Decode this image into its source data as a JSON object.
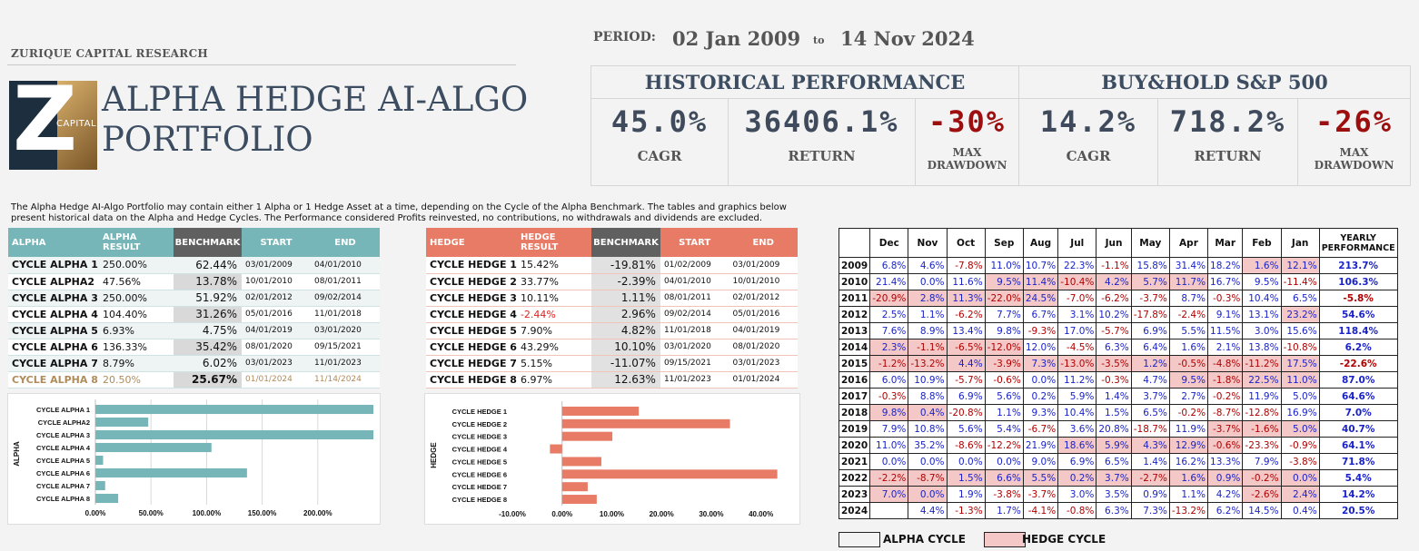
{
  "firm": "ZURIQUE CAPITAL RESEARCH",
  "logo": {
    "letter": "Z",
    "text": "CAPITAL"
  },
  "title_line1": "ALPHA HEDGE AI-ALGO",
  "title_line2": "PORTFOLIO",
  "period": {
    "label": "PERIOD:",
    "start": "02 Jan 2009",
    "to": "to",
    "end": "14 Nov 2024"
  },
  "historical": {
    "heading": "HISTORICAL PERFORMANCE",
    "cagr": "45.0%",
    "cagr_label": "CAGR",
    "return": "36406.1%",
    "return_label": "RETURN",
    "mdd": "-30%",
    "mdd_label_1": "MAX",
    "mdd_label_2": "DRAWDOWN"
  },
  "buyhold": {
    "heading": "BUY&HOLD S&P 500",
    "cagr": "14.2%",
    "cagr_label": "CAGR",
    "return": "718.2%",
    "return_label": "RETURN",
    "mdd": "-26%",
    "mdd_label_1": "MAX",
    "mdd_label_2": "DRAWDOWN"
  },
  "description_1": "The Alpha Hedge AI-Algo Portfolio may contain either 1 Alpha or 1 Hedge Asset at a time, depending on the Cycle of the Alpha Benchmark. The tables and graphics below",
  "description_2": "present historical data on the Alpha and Hedge Cycles. The Performance considered Profits reinvested, no contributions, no withdrawals and dividends are excluded.",
  "alpha_table": {
    "headers": [
      "ALPHA",
      "ALPHA RESULT",
      "BENCHMARK",
      "START",
      "END"
    ],
    "rows": [
      [
        "CYCLE ALPHA 1",
        "250.00%",
        "62.44%",
        "03/01/2009",
        "04/01/2010"
      ],
      [
        "CYCLE ALPHA2",
        "47.56%",
        "13.78%",
        "10/01/2010",
        "08/01/2011"
      ],
      [
        "CYCLE ALPHA 3",
        "250.00%",
        "51.92%",
        "02/01/2012",
        "09/02/2014"
      ],
      [
        "CYCLE ALPHA 4",
        "104.40%",
        "31.26%",
        "05/01/2016",
        "11/01/2018"
      ],
      [
        "CYCLE ALPHA 5",
        "6.93%",
        "4.75%",
        "04/01/2019",
        "03/01/2020"
      ],
      [
        "CYCLE ALPHA 6",
        "136.33%",
        "35.42%",
        "08/01/2020",
        "09/15/2021"
      ],
      [
        "CYCLE ALPHA 7",
        "8.79%",
        "6.02%",
        "03/01/2023",
        "11/01/2023"
      ],
      [
        "CYCLE ALPHA 8",
        "20.50%",
        "25.67%",
        "01/01/2024",
        "11/14/2024"
      ]
    ]
  },
  "hedge_table": {
    "headers": [
      "HEDGE",
      "HEDGE RESULT",
      "BENCHMARK",
      "START",
      "END"
    ],
    "rows": [
      [
        "CYCLE HEDGE 1",
        "15.42%",
        "-19.81%",
        "01/02/2009",
        "03/01/2009"
      ],
      [
        "CYCLE HEDGE 2",
        "33.77%",
        "-2.39%",
        "04/01/2010",
        "10/01/2010"
      ],
      [
        "CYCLE HEDGE 3",
        "10.11%",
        "1.11%",
        "08/01/2011",
        "02/01/2012"
      ],
      [
        "CYCLE HEDGE 4",
        "-2.44%",
        "2.96%",
        "09/02/2014",
        "05/01/2016"
      ],
      [
        "CYCLE HEDGE 5",
        "7.90%",
        "4.82%",
        "11/01/2018",
        "04/01/2019"
      ],
      [
        "CYCLE HEDGE 6",
        "43.29%",
        "10.10%",
        "03/01/2020",
        "08/01/2020"
      ],
      [
        "CYCLE HEDGE 7",
        "5.15%",
        "-11.07%",
        "09/15/2021",
        "03/01/2023"
      ],
      [
        "CYCLE HEDGE 8",
        "6.97%",
        "12.63%",
        "11/01/2023",
        "01/01/2024"
      ]
    ]
  },
  "chart_data": [
    {
      "type": "bar",
      "orientation": "horizontal",
      "ylabel": "ALPHA",
      "categories": [
        "CYCLE ALPHA 1",
        "CYCLE ALPHA2",
        "CYCLE ALPHA 3",
        "CYCLE ALPHA 4",
        "CYCLE ALPHA 5",
        "CYCLE ALPHA 6",
        "CYCLE ALPHA 7",
        "CYCLE ALPHA 8"
      ],
      "values": [
        250.0,
        47.56,
        250.0,
        104.4,
        6.93,
        136.33,
        8.79,
        20.5
      ],
      "xlim": [
        0,
        250
      ],
      "xticks": [
        0,
        50,
        100,
        150,
        200
      ],
      "xtick_labels": [
        "0.00%",
        "50.00%",
        "100.00%",
        "150.00%",
        "200.00%"
      ],
      "color": "#76b6b8",
      "grid": true
    },
    {
      "type": "bar",
      "orientation": "horizontal",
      "ylabel": "HEDGE",
      "categories": [
        "CYCLE HEDGE 1",
        "CYCLE HEDGE 2",
        "CYCLE HEDGE 3",
        "CYCLE HEDGE 4",
        "CYCLE HEDGE 5",
        "CYCLE HEDGE 6",
        "CYCLE HEDGE 7",
        "CYCLE HEDGE 8"
      ],
      "values": [
        15.42,
        33.77,
        10.11,
        -2.44,
        7.9,
        43.29,
        5.15,
        6.97
      ],
      "xlim": [
        -10,
        45
      ],
      "xticks": [
        -10,
        0,
        10,
        20,
        30,
        40
      ],
      "xtick_labels": [
        "-10.00%",
        "0.00%",
        "10.00%",
        "20.00%",
        "30.00%",
        "40.00%"
      ],
      "color": "#e87b66",
      "grid": false
    }
  ],
  "monthly": {
    "headers": [
      "",
      "Dec",
      "Nov",
      "Oct",
      "Sep",
      "Aug",
      "Jul",
      "Jun",
      "May",
      "Apr",
      "Mar",
      "Feb",
      "Jan",
      "YEARLY PERFORMANCE"
    ],
    "rows": [
      {
        "year": "2009",
        "values": [
          "6.8%",
          "4.6%",
          "-7.8%",
          "11.0%",
          "10.7%",
          "22.3%",
          "-1.1%",
          "15.8%",
          "31.4%",
          "18.2%",
          "1.6%",
          "12.1%"
        ],
        "hedge": [
          10,
          11
        ],
        "total": "213.7%"
      },
      {
        "year": "2010",
        "values": [
          "21.4%",
          "0.0%",
          "11.6%",
          "9.5%",
          "11.4%",
          "-10.4%",
          "4.2%",
          "5.7%",
          "11.7%",
          "16.7%",
          "9.5%",
          "-11.4%"
        ],
        "hedge": [
          3,
          4,
          5,
          6,
          7,
          8
        ],
        "total": "106.3%"
      },
      {
        "year": "2011",
        "values": [
          "-20.9%",
          "2.8%",
          "11.3%",
          "-22.0%",
          "24.5%",
          "-7.0%",
          "-6.2%",
          "-3.7%",
          "8.7%",
          "-0.3%",
          "10.4%",
          "6.5%"
        ],
        "hedge": [
          0,
          1,
          2,
          3,
          4
        ],
        "total": "-5.8%"
      },
      {
        "year": "2012",
        "values": [
          "2.5%",
          "1.1%",
          "-6.2%",
          "7.7%",
          "6.7%",
          "3.1%",
          "10.2%",
          "-17.8%",
          "-2.4%",
          "9.1%",
          "13.1%",
          "23.2%"
        ],
        "hedge": [
          11
        ],
        "total": "54.6%"
      },
      {
        "year": "2013",
        "values": [
          "7.6%",
          "8.9%",
          "13.4%",
          "9.8%",
          "-9.3%",
          "17.0%",
          "-5.7%",
          "6.9%",
          "5.5%",
          "11.5%",
          "3.0%",
          "15.6%"
        ],
        "hedge": [],
        "total": "118.4%"
      },
      {
        "year": "2014",
        "values": [
          "2.3%",
          "-1.1%",
          "-6.5%",
          "-12.0%",
          "12.0%",
          "-4.5%",
          "6.3%",
          "6.4%",
          "1.6%",
          "2.1%",
          "13.8%",
          "-10.8%"
        ],
        "hedge": [
          0,
          1,
          2,
          3
        ],
        "total": "6.2%"
      },
      {
        "year": "2015",
        "values": [
          "-1.2%",
          "-13.2%",
          "4.4%",
          "-3.9%",
          "7.3%",
          "-13.0%",
          "-3.5%",
          "1.2%",
          "-0.5%",
          "-4.8%",
          "-11.2%",
          "17.5%"
        ],
        "hedge": [
          0,
          1,
          2,
          3,
          4,
          5,
          6,
          7,
          8,
          9,
          10,
          11
        ],
        "total": "-22.6%"
      },
      {
        "year": "2016",
        "values": [
          "6.0%",
          "10.9%",
          "-5.7%",
          "-0.6%",
          "0.0%",
          "11.2%",
          "-0.3%",
          "4.7%",
          "9.5%",
          "-1.8%",
          "22.5%",
          "11.0%"
        ],
        "hedge": [
          8,
          9,
          10,
          11
        ],
        "total": "87.0%"
      },
      {
        "year": "2017",
        "values": [
          "-0.3%",
          "8.8%",
          "6.9%",
          "5.6%",
          "0.2%",
          "5.9%",
          "1.4%",
          "3.7%",
          "2.7%",
          "-0.2%",
          "11.9%",
          "5.0%"
        ],
        "hedge": [],
        "total": "64.6%"
      },
      {
        "year": "2018",
        "values": [
          "9.8%",
          "0.4%",
          "-20.8%",
          "1.1%",
          "9.3%",
          "10.4%",
          "1.5%",
          "6.5%",
          "-0.2%",
          "-8.7%",
          "-12.8%",
          "16.9%"
        ],
        "hedge": [
          0,
          1
        ],
        "total": "7.0%"
      },
      {
        "year": "2019",
        "values": [
          "7.9%",
          "10.8%",
          "5.6%",
          "5.4%",
          "-6.7%",
          "3.6%",
          "20.8%",
          "-18.7%",
          "11.9%",
          "-3.7%",
          "-1.6%",
          "5.0%"
        ],
        "hedge": [
          9,
          10,
          11
        ],
        "total": "40.7%"
      },
      {
        "year": "2020",
        "values": [
          "11.0%",
          "35.2%",
          "-8.6%",
          "-12.2%",
          "21.9%",
          "18.6%",
          "5.9%",
          "4.3%",
          "12.9%",
          "-0.6%",
          "-23.3%",
          "-0.9%"
        ],
        "hedge": [
          5,
          6,
          7,
          8,
          9
        ],
        "total": "64.1%"
      },
      {
        "year": "2021",
        "values": [
          "0.0%",
          "0.0%",
          "0.0%",
          "0.0%",
          "9.0%",
          "6.9%",
          "6.5%",
          "1.4%",
          "16.2%",
          "13.3%",
          "7.9%",
          "-3.8%"
        ],
        "hedge": [],
        "total": "71.8%"
      },
      {
        "year": "2022",
        "values": [
          "-2.2%",
          "-8.7%",
          "1.5%",
          "6.6%",
          "5.5%",
          "0.2%",
          "3.7%",
          "-2.7%",
          "1.6%",
          "0.9%",
          "-0.2%",
          "0.0%"
        ],
        "hedge": [
          0,
          1,
          2,
          3,
          4,
          5,
          6,
          7,
          8,
          9,
          10,
          11
        ],
        "total": "5.4%"
      },
      {
        "year": "2023",
        "values": [
          "7.0%",
          "0.0%",
          "1.9%",
          "-3.8%",
          "-3.7%",
          "3.0%",
          "3.5%",
          "0.9%",
          "1.1%",
          "4.2%",
          "-2.6%",
          "2.4%"
        ],
        "hedge": [
          0,
          1,
          10,
          11
        ],
        "total": "14.2%"
      },
      {
        "year": "2024",
        "values": [
          "",
          "4.4%",
          "-1.3%",
          "1.7%",
          "-4.1%",
          "-0.8%",
          "6.3%",
          "7.3%",
          "-13.2%",
          "6.2%",
          "14.5%",
          "0.4%"
        ],
        "hedge": [],
        "total": "20.5%"
      }
    ]
  },
  "legend": {
    "alpha": "ALPHA CYCLE",
    "hedge": "HEDGE CYCLE",
    "alpha_color": "#ffffff",
    "hedge_color": "#f5c8c8"
  }
}
